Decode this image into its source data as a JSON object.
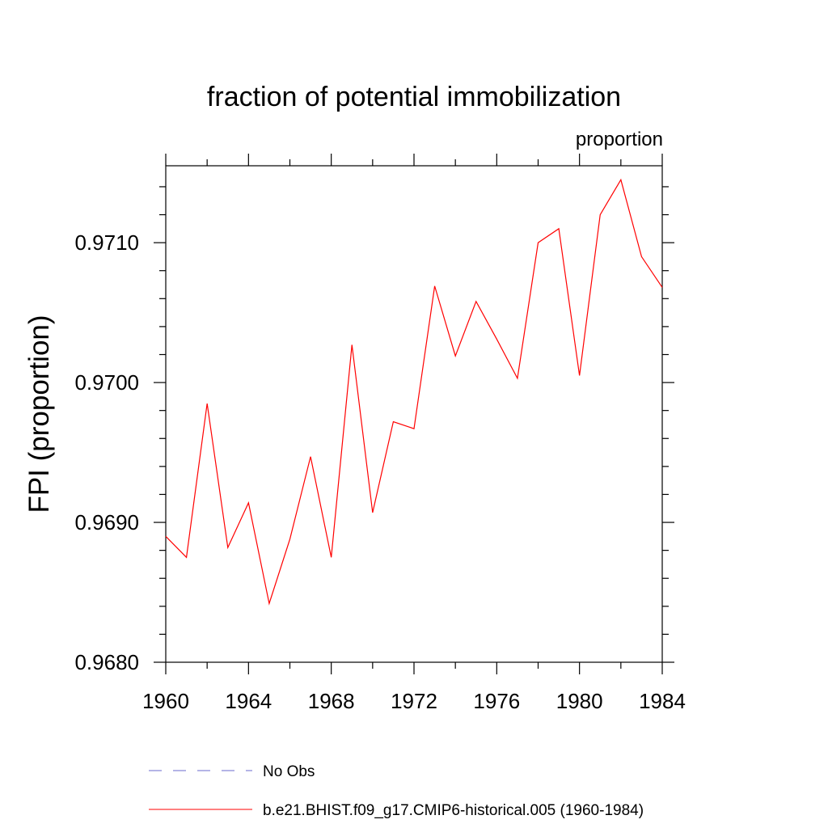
{
  "chart_data": {
    "type": "line",
    "title": "fraction of potential immobilization",
    "subtitle_right": "proportion",
    "xlabel": "",
    "ylabel": "FPI  (proportion)",
    "xlim": [
      1960,
      1984
    ],
    "ylim": [
      0.968,
      0.97155
    ],
    "x_ticks": [
      "1960",
      "1964",
      "1968",
      "1972",
      "1976",
      "1980",
      "1984"
    ],
    "y_ticks": [
      "0.9680",
      "0.9690",
      "0.9700",
      "0.9710"
    ],
    "grid": false,
    "series": [
      {
        "name": "b.e21.BHIST.f09_g17.CMIP6-historical.005 (1960-1984)",
        "color": "#ff0000",
        "style": "solid",
        "x": [
          1960,
          1961,
          1962,
          1963,
          1964,
          1965,
          1966,
          1967,
          1968,
          1969,
          1970,
          1971,
          1972,
          1973,
          1974,
          1975,
          1976,
          1977,
          1978,
          1979,
          1980,
          1981,
          1982,
          1983,
          1984
        ],
        "y": [
          0.9689,
          0.96875,
          0.96985,
          0.96882,
          0.96914,
          0.96842,
          0.96888,
          0.96947,
          0.96875,
          0.97027,
          0.96907,
          0.96972,
          0.96967,
          0.97069,
          0.97019,
          0.97058,
          0.97031,
          0.97003,
          0.971,
          0.9711,
          0.97005,
          0.9712,
          0.97145,
          0.9709,
          0.97068
        ]
      }
    ],
    "legend": [
      {
        "label": "No Obs",
        "color": "#6a6acd",
        "style": "dashed"
      },
      {
        "label": "b.e21.BHIST.f09_g17.CMIP6-historical.005 (1960-1984)",
        "color": "#ff0000",
        "style": "solid"
      }
    ],
    "legend_position": "bottom-left"
  }
}
